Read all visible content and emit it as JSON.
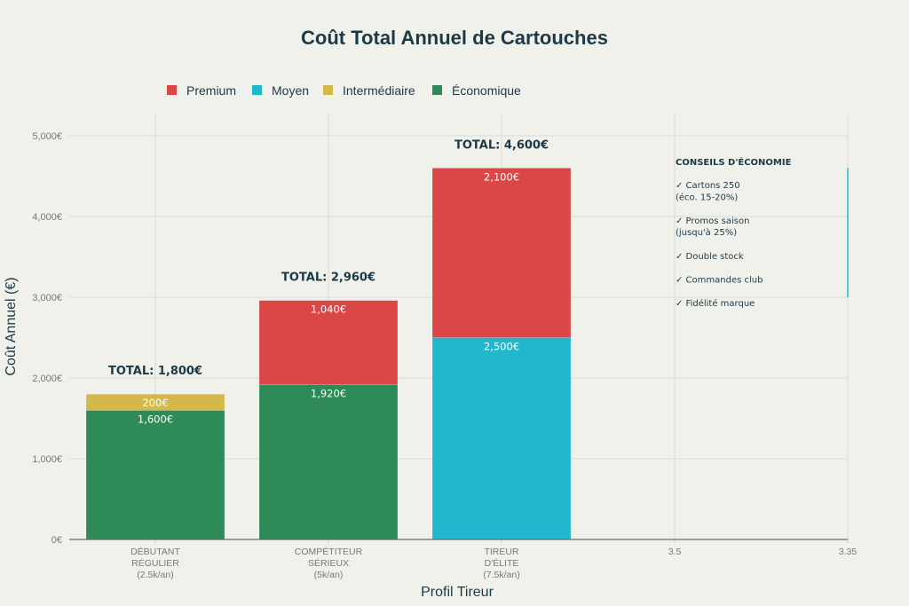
{
  "chart_data": {
    "type": "bar",
    "stacked": true,
    "title": "Coût Total Annuel de Cartouches",
    "xlabel": "Profil Tireur",
    "ylabel": "Coût Annuel (€)",
    "ylim": [
      0,
      5200
    ],
    "yticks": [
      0,
      1000,
      2000,
      3000,
      4000,
      5000
    ],
    "ytick_labels": [
      "0€",
      "1,000€",
      "2,000€",
      "3,000€",
      "4,000€",
      "5,000€"
    ],
    "grid": true,
    "legend_position": "top",
    "categories": [
      [
        "DÉBUTANT",
        "RÉGULIER",
        "(2.5k/an)"
      ],
      [
        "COMPÉTITEUR",
        "SÉRIEUX",
        "(5k/an)"
      ],
      [
        "TIREUR",
        "D'ÉLITE",
        "(7.5k/an)"
      ]
    ],
    "extra_xtick_labels": [
      "3.5",
      "3.35"
    ],
    "legend": [
      "Premium",
      "Moyen",
      "Intermédiaire",
      "Économique"
    ],
    "series": [
      {
        "name": "Économique",
        "color": "#2e8b57",
        "values": [
          1600,
          1920,
          0
        ],
        "labels": [
          "1,600€",
          "1,920€",
          ""
        ]
      },
      {
        "name": "Intermédiaire",
        "color": "#d4b94a",
        "values": [
          200,
          0,
          0
        ],
        "labels": [
          "200€",
          "",
          ""
        ]
      },
      {
        "name": "Moyen",
        "color": "#21b8cf",
        "values": [
          0,
          0,
          2500
        ],
        "labels": [
          "",
          "",
          "2,500€"
        ]
      },
      {
        "name": "Premium",
        "color": "#db4747",
        "values": [
          0,
          1040,
          2100
        ],
        "labels": [
          "",
          "1,040€",
          "2,100€"
        ]
      }
    ],
    "totals": [
      1800,
      2960,
      4600
    ],
    "total_labels": [
      "TOTAL: 1,800€",
      "TOTAL: 2,960€",
      "TOTAL: 4,600€"
    ],
    "annotation": {
      "title": "CONSEILS D'ÉCONOMIE",
      "lines": [
        "✓ Cartons 250",
        "  (éco. 15-20%)",
        "",
        "✓ Promos saison",
        "  (jusqu'à 25%)",
        "",
        "✓ Double stock",
        "",
        "✓ Commandes club",
        "",
        "✓ Fidélité marque"
      ],
      "accent_color": "#21b8cf",
      "accent_range": [
        3000,
        4600
      ]
    }
  }
}
